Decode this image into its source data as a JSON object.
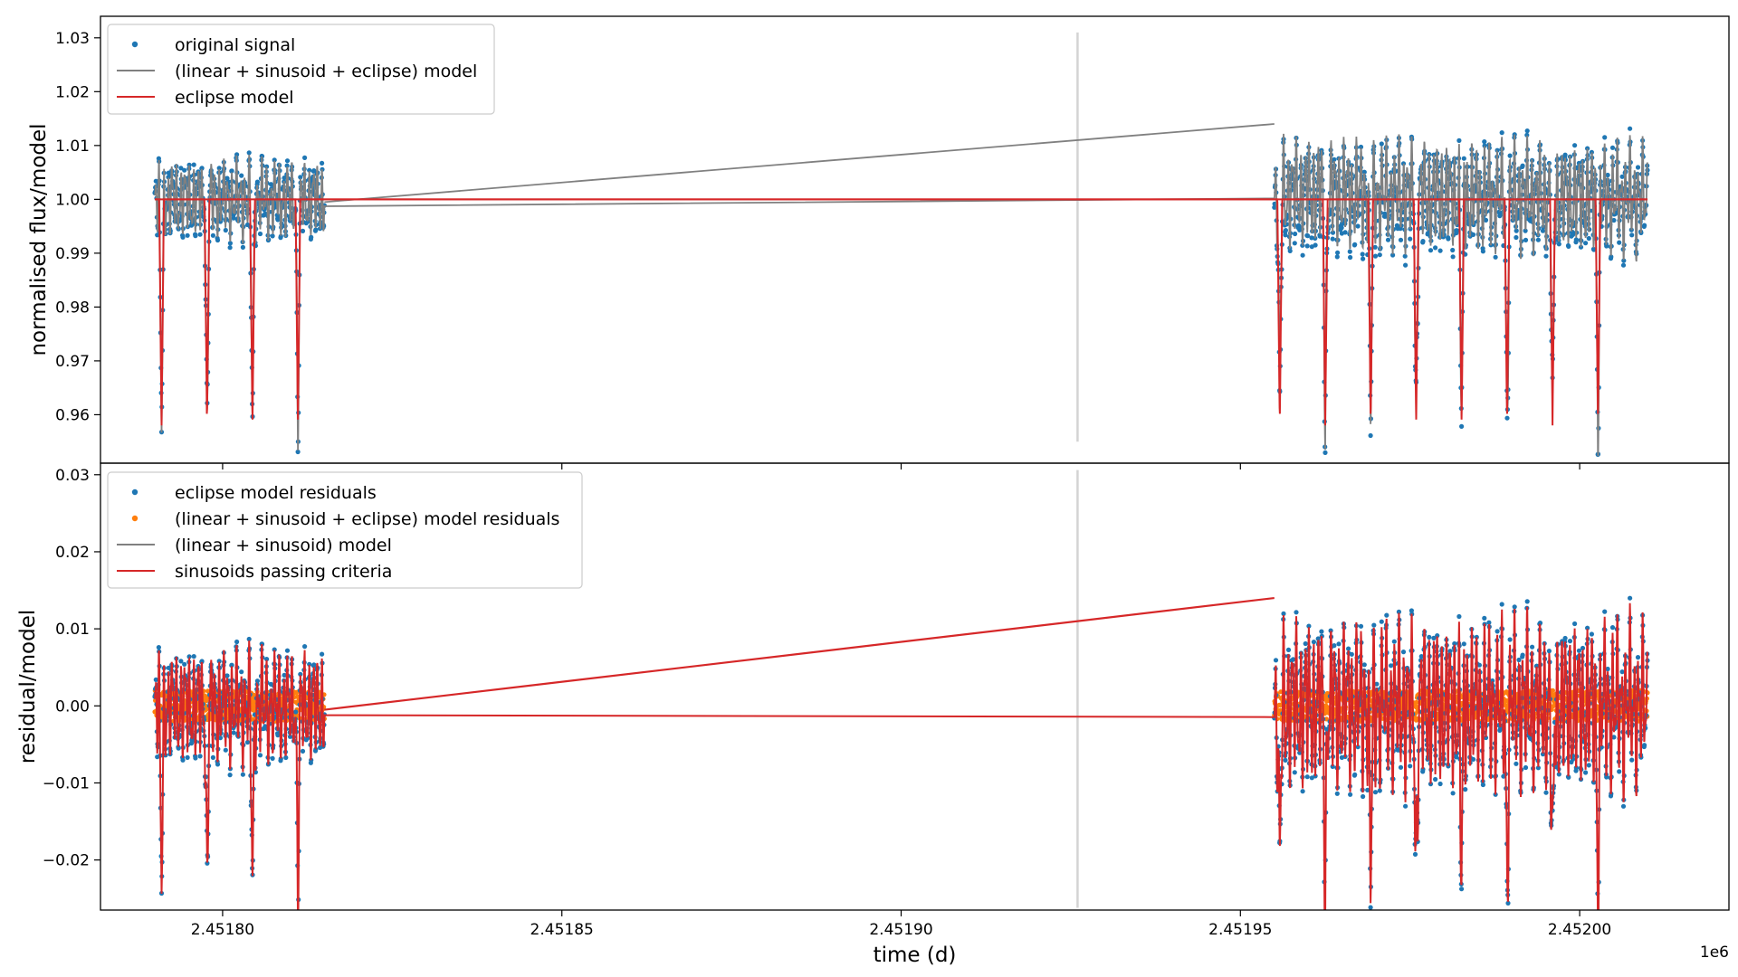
{
  "chart_data": [
    {
      "type": "scatter",
      "panel": "top",
      "ylabel": "normalised flux/model",
      "ylim": [
        0.951,
        1.034
      ],
      "yticks": [
        0.96,
        0.97,
        0.98,
        0.99,
        1.0,
        1.01,
        1.02,
        1.03
      ],
      "ytick_labels": [
        "0.96",
        "0.97",
        "0.98",
        "0.99",
        "1.00",
        "1.01",
        "1.02",
        "1.03"
      ],
      "xlim": [
        2451782,
        2452022
      ],
      "legend": {
        "position": "top-left"
      },
      "series": [
        {
          "name": "original signal",
          "kind": "points",
          "color": "#1f77b4"
        },
        {
          "name": "(linear + sinusoid + eclipse) model",
          "kind": "line",
          "color": "#808080"
        },
        {
          "name": "eclipse model",
          "kind": "line",
          "color": "#d62728"
        }
      ],
      "eclipse_times_d": [
        2451791.0,
        2451797.7,
        2451804.4,
        2451811.1,
        2451955.8,
        2451962.5,
        2451969.2,
        2451975.9,
        2451982.6,
        2451989.3,
        2451996.0,
        2452002.7
      ],
      "eclipse_depth": 0.042,
      "segments_d": [
        [
          2451790,
          2451815
        ],
        [
          2451955,
          2452010
        ]
      ],
      "gap_marker_d": 2451926
    },
    {
      "type": "scatter",
      "panel": "bottom",
      "ylabel": "residual/model",
      "xlabel": "time (d)",
      "x_offset_label": "1e6",
      "ylim": [
        -0.0265,
        0.0315
      ],
      "yticks": [
        -0.02,
        -0.01,
        0.0,
        0.01,
        0.02,
        0.03
      ],
      "ytick_labels": [
        "−0.02",
        "−0.01",
        "0.00",
        "0.01",
        "0.02",
        "0.03"
      ],
      "xlim": [
        2451782,
        2452022
      ],
      "xticks": [
        2451800,
        2451850,
        2451900,
        2451950,
        2452000
      ],
      "xtick_labels": [
        "2.45180",
        "2.45185",
        "2.45190",
        "2.45195",
        "2.45200"
      ],
      "legend": {
        "position": "top-left"
      },
      "series": [
        {
          "name": "eclipse model residuals",
          "kind": "points",
          "color": "#1f77b4"
        },
        {
          "name": "(linear + sinusoid + eclipse) model residuals",
          "kind": "points",
          "color": "#ff7f0e"
        },
        {
          "name": "(linear + sinusoid) model",
          "kind": "line",
          "color": "#808080"
        },
        {
          "name": "sinusoids passing criteria",
          "kind": "line",
          "color": "#d62728"
        }
      ],
      "trend_line_d": [
        [
          2451815,
          -0.0005
        ],
        [
          2451955,
          0.014
        ]
      ],
      "gap_marker_d": 2451926
    }
  ]
}
